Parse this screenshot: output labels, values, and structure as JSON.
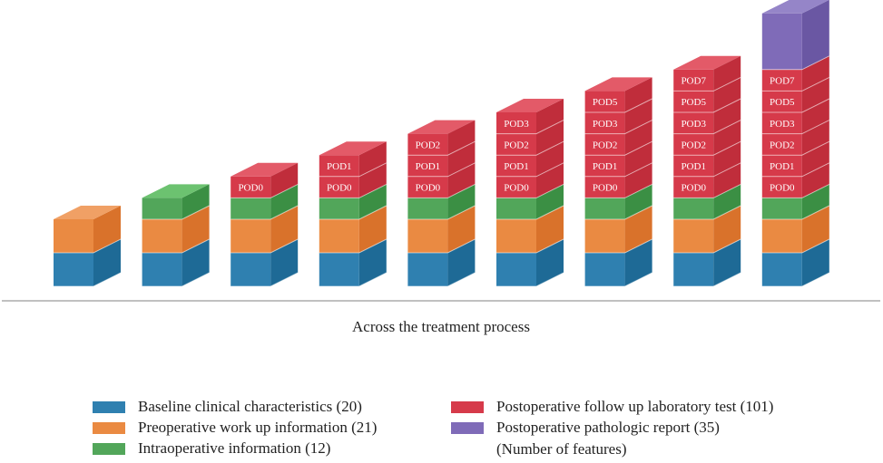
{
  "diagram": {
    "xlabel": "Across the treatment process",
    "categories": {
      "baseline": {
        "label": "Baseline clinical characteristics (20)",
        "color": "#2f80b0",
        "side": "#1e6a96",
        "top": "#4a9bc9"
      },
      "preop": {
        "label": "Preoperative work up information (21)",
        "color": "#ea8a42",
        "side": "#d9722b",
        "top": "#f0a065"
      },
      "intraop": {
        "label": "Intraoperative information (12)",
        "color": "#52a65a",
        "side": "#3b8f44",
        "top": "#6cc270"
      },
      "postop_lab": {
        "label": "Postoperative follow up laboratory test (101)",
        "color": "#d63a4a",
        "side": "#c02d3b",
        "top": "#e35a68"
      },
      "pathology": {
        "label": "Postoperative pathologic report (35)",
        "color": "#7f6bb8",
        "side": "#6a57a3",
        "top": "#9585c8"
      }
    },
    "legend_note": "(Number of features)",
    "stacks": [
      {
        "layers": [
          {
            "cat": "baseline"
          },
          {
            "cat": "preop"
          }
        ]
      },
      {
        "layers": [
          {
            "cat": "baseline"
          },
          {
            "cat": "preop"
          },
          {
            "cat": "intraop"
          }
        ]
      },
      {
        "layers": [
          {
            "cat": "baseline"
          },
          {
            "cat": "preop"
          },
          {
            "cat": "intraop"
          },
          {
            "cat": "postop_lab",
            "label": "POD0"
          }
        ]
      },
      {
        "layers": [
          {
            "cat": "baseline"
          },
          {
            "cat": "preop"
          },
          {
            "cat": "intraop"
          },
          {
            "cat": "postop_lab",
            "label": "POD0"
          },
          {
            "cat": "postop_lab",
            "label": "POD1"
          }
        ]
      },
      {
        "layers": [
          {
            "cat": "baseline"
          },
          {
            "cat": "preop"
          },
          {
            "cat": "intraop"
          },
          {
            "cat": "postop_lab",
            "label": "POD0"
          },
          {
            "cat": "postop_lab",
            "label": "POD1"
          },
          {
            "cat": "postop_lab",
            "label": "POD2"
          }
        ]
      },
      {
        "layers": [
          {
            "cat": "baseline"
          },
          {
            "cat": "preop"
          },
          {
            "cat": "intraop"
          },
          {
            "cat": "postop_lab",
            "label": "POD0"
          },
          {
            "cat": "postop_lab",
            "label": "POD1"
          },
          {
            "cat": "postop_lab",
            "label": "POD2"
          },
          {
            "cat": "postop_lab",
            "label": "POD3"
          }
        ]
      },
      {
        "layers": [
          {
            "cat": "baseline"
          },
          {
            "cat": "preop"
          },
          {
            "cat": "intraop"
          },
          {
            "cat": "postop_lab",
            "label": "POD0"
          },
          {
            "cat": "postop_lab",
            "label": "POD1"
          },
          {
            "cat": "postop_lab",
            "label": "POD2"
          },
          {
            "cat": "postop_lab",
            "label": "POD3"
          },
          {
            "cat": "postop_lab",
            "label": "POD5"
          }
        ]
      },
      {
        "layers": [
          {
            "cat": "baseline"
          },
          {
            "cat": "preop"
          },
          {
            "cat": "intraop"
          },
          {
            "cat": "postop_lab",
            "label": "POD0"
          },
          {
            "cat": "postop_lab",
            "label": "POD1"
          },
          {
            "cat": "postop_lab",
            "label": "POD2"
          },
          {
            "cat": "postop_lab",
            "label": "POD3"
          },
          {
            "cat": "postop_lab",
            "label": "POD5"
          },
          {
            "cat": "postop_lab",
            "label": "POD7"
          }
        ]
      },
      {
        "layers": [
          {
            "cat": "baseline"
          },
          {
            "cat": "preop"
          },
          {
            "cat": "intraop"
          },
          {
            "cat": "postop_lab",
            "label": "POD0"
          },
          {
            "cat": "postop_lab",
            "label": "POD1"
          },
          {
            "cat": "postop_lab",
            "label": "POD2"
          },
          {
            "cat": "postop_lab",
            "label": "POD3"
          },
          {
            "cat": "postop_lab",
            "label": "POD5"
          },
          {
            "cat": "postop_lab",
            "label": "POD7"
          },
          {
            "cat": "pathology"
          }
        ]
      }
    ]
  }
}
